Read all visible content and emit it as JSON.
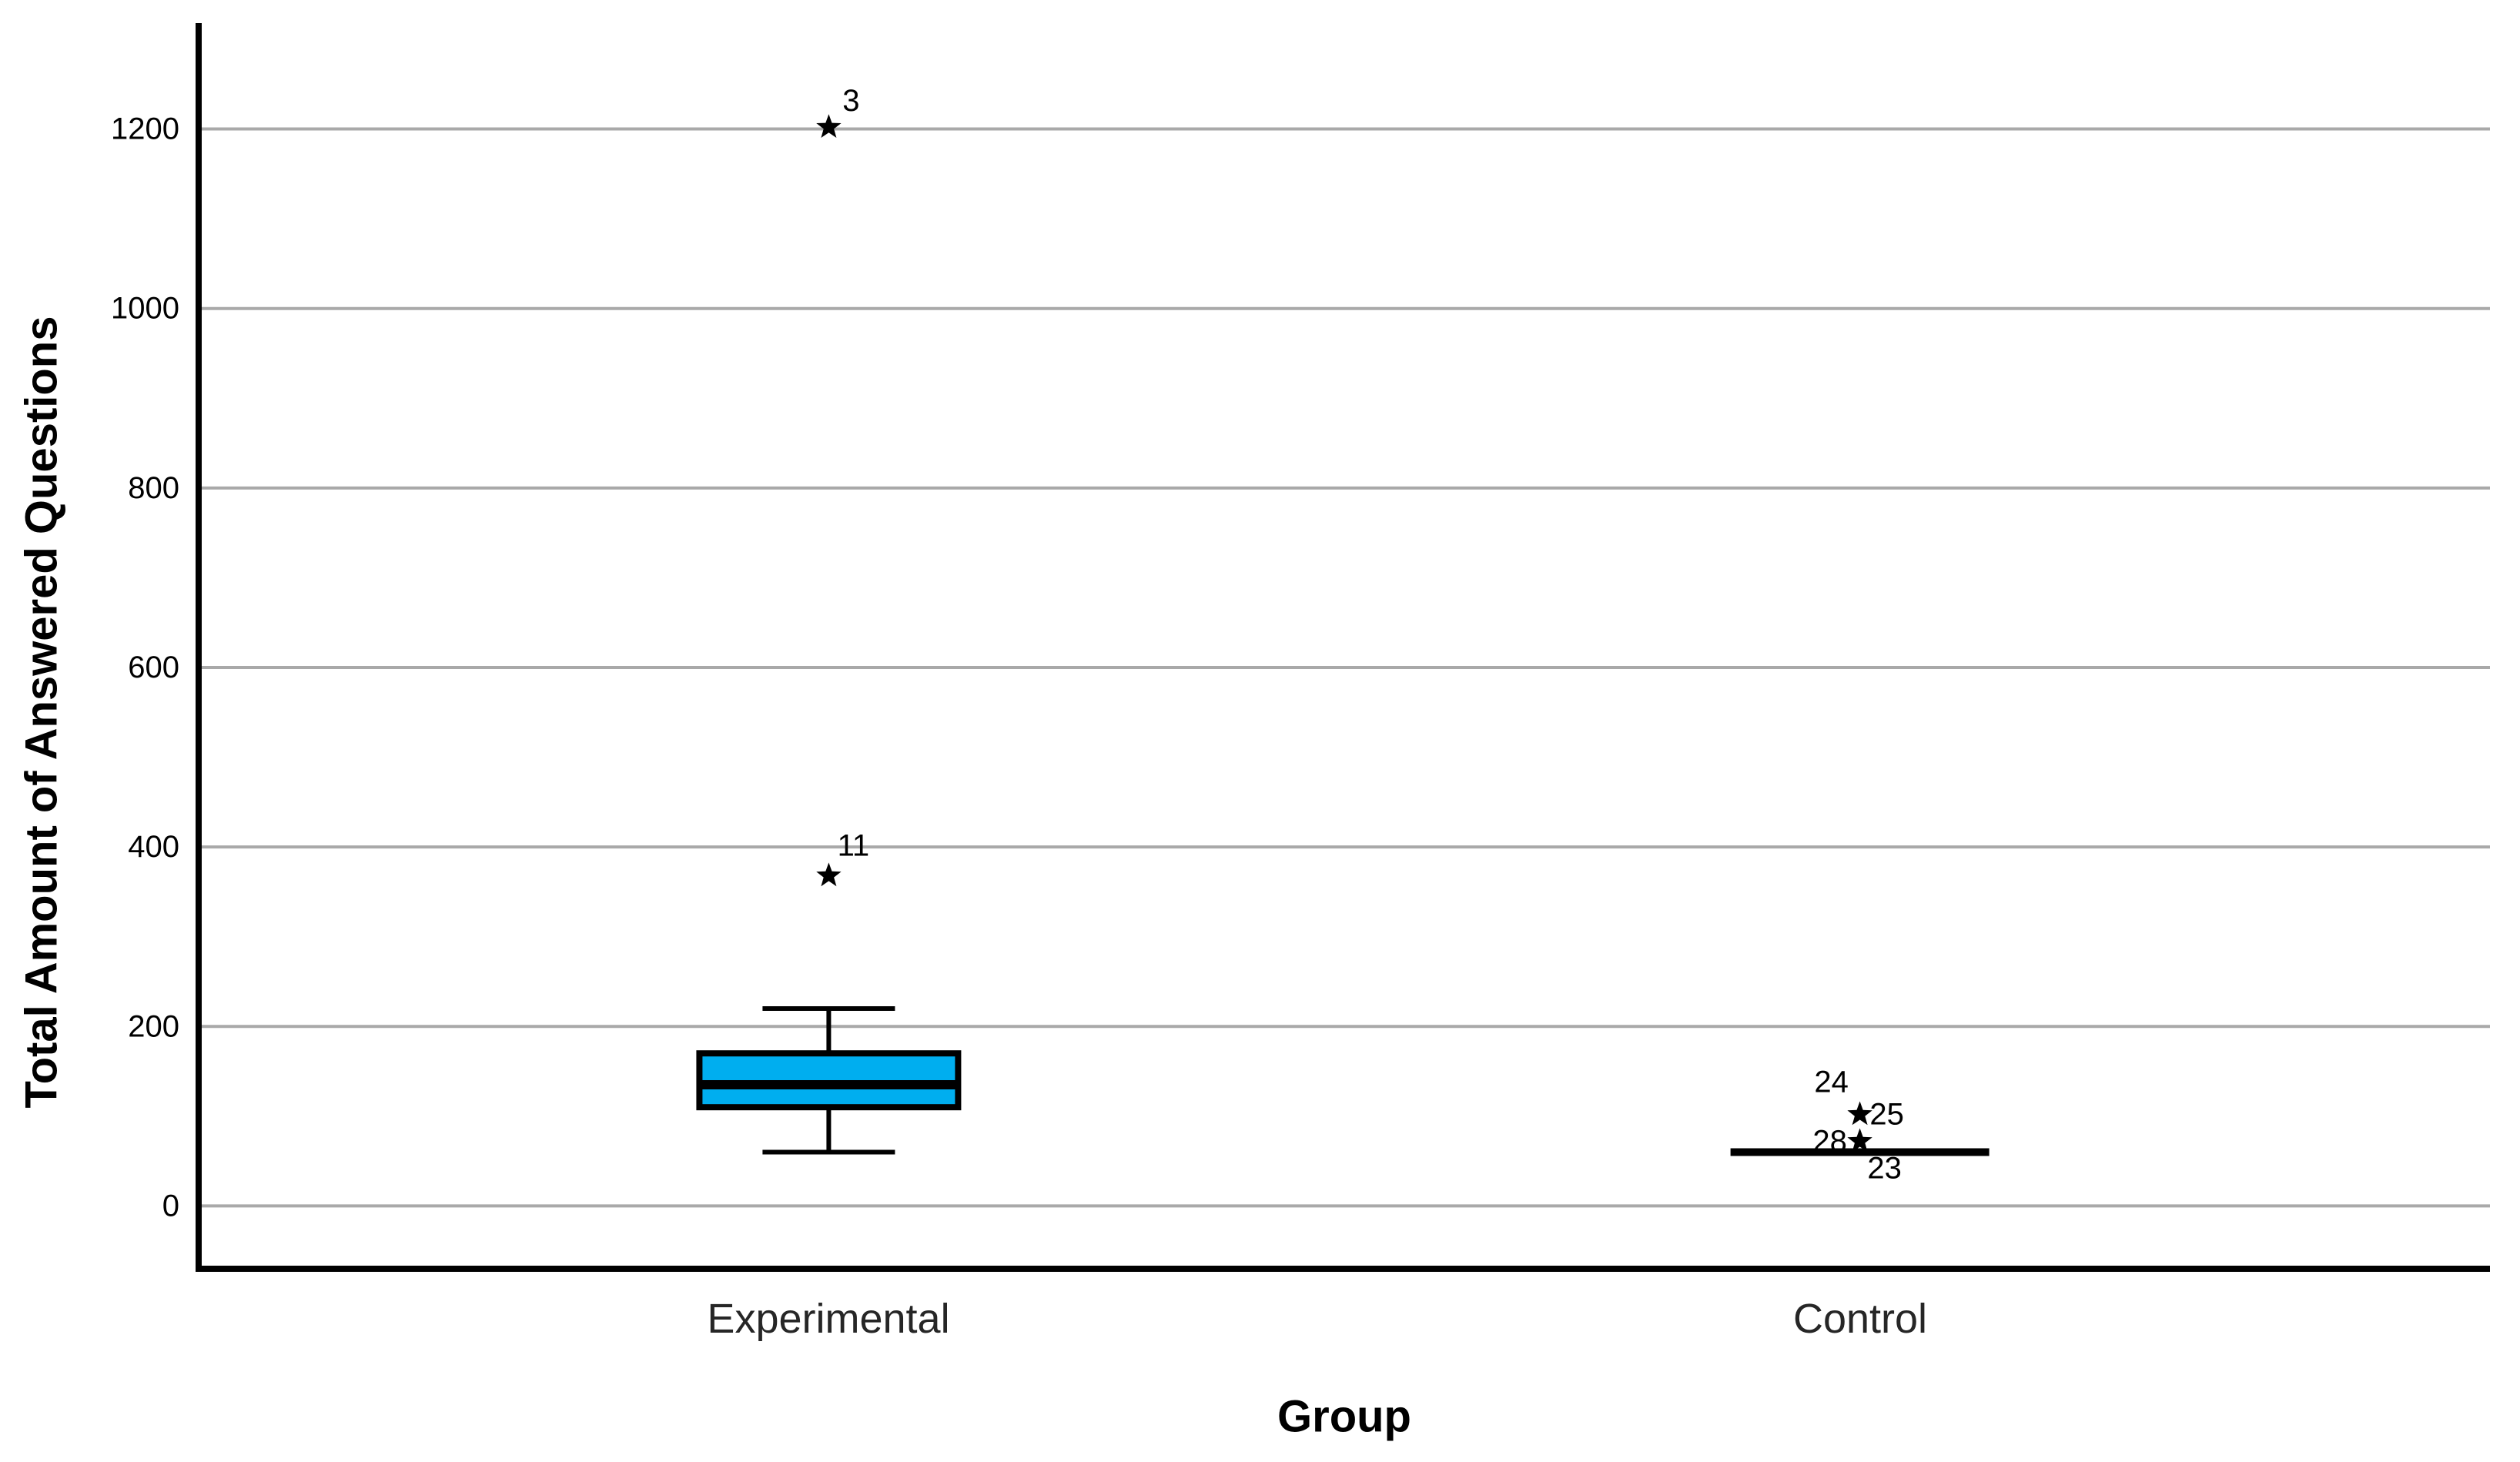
{
  "figure": {
    "background": "#FFFFFF"
  },
  "chart_data": {
    "type": "boxplot",
    "orientation": "vertical",
    "title": "",
    "xlabel": "Group",
    "ylabel": "Total Amount of Answered Questions",
    "categories": [
      "Experimental",
      "Control"
    ],
    "yticks": [
      0,
      200,
      400,
      600,
      800,
      1000,
      1200
    ],
    "ylim": [
      -70,
      1318
    ],
    "grid": {
      "horizontal": true,
      "vertical": false,
      "color": "#A9A9A9"
    },
    "colors": {
      "box_fill": "#00AEEF",
      "box_stroke": "#000000",
      "axis": "#000000",
      "text": "#000000"
    },
    "outlier_marker": "star",
    "series": [
      {
        "category": "Experimental",
        "whisker_low": 60,
        "q1": 110,
        "median": 135,
        "q3": 170,
        "whisker_high": 220,
        "collapsed": false,
        "outliers": [
          {
            "label": "11",
            "value": 368,
            "marker": "star",
            "label_dx": 32,
            "label_dy": -39
          },
          {
            "label": "3",
            "value": 1202,
            "marker": "star",
            "label_dx": 29,
            "label_dy": -34
          }
        ]
      },
      {
        "category": "Control",
        "whisker_low": 60,
        "q1": 60,
        "median": 60,
        "q3": 60,
        "whisker_high": 60,
        "collapsed": true,
        "outliers": [
          {
            "label": "25",
            "value": 102,
            "marker": "star",
            "label_dx": 35,
            "label_dy": 0
          },
          {
            "label": "28",
            "value": 72,
            "marker": "star",
            "label_dx": -39,
            "label_dy": 0
          },
          {
            "label": "24",
            "value": 138,
            "marker": "none",
            "label_dx": -37,
            "label_dy": 0
          },
          {
            "label": "23",
            "value": 42,
            "marker": "none",
            "label_dx": 32,
            "label_dy": 0
          }
        ]
      }
    ]
  }
}
